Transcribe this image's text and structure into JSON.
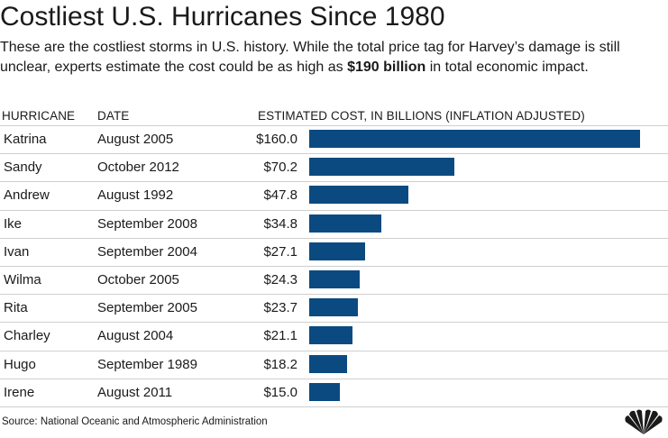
{
  "header": {
    "title": "Costliest U.S. Hurricanes Since 1980",
    "subtitle_before": "These are the costliest storms in U.S. history. While the total price tag for Harvey’s damage is still unclear, experts estimate the cost could be as high as ",
    "subtitle_bold": "$190 billion",
    "subtitle_after": " in total economic impact."
  },
  "columns": {
    "hurricane": "HURRICANE",
    "date": "DATE",
    "cost": "ESTIMATED COST, IN BILLIONS (INFLATION ADJUSTED)"
  },
  "chart_data": {
    "type": "bar",
    "orientation": "horizontal",
    "categories": [
      "Katrina",
      "Sandy",
      "Andrew",
      "Ike",
      "Ivan",
      "Wilma",
      "Rita",
      "Charley",
      "Hugo",
      "Irene"
    ],
    "dates": [
      "August 2005",
      "October 2012",
      "August 1992",
      "September 2008",
      "September 2004",
      "October 2005",
      "September 2005",
      "August 2004",
      "September 1989",
      "August 2011"
    ],
    "values": [
      160.0,
      70.2,
      47.8,
      34.8,
      27.1,
      24.3,
      23.7,
      21.1,
      18.2,
      15.0
    ],
    "value_labels": [
      "$160.0",
      "$70.2",
      "$47.8",
      "$34.8",
      "$27.1",
      "$24.3",
      "$23.7",
      "$21.1",
      "$18.2",
      "$15.0"
    ],
    "xlim": [
      0,
      160
    ],
    "grid": false,
    "bar_color": "#0b4a80"
  },
  "footer": {
    "source": "Source: National Oceanic and Atmospheric Administration",
    "logo_icon": "peacock-logo-icon"
  }
}
